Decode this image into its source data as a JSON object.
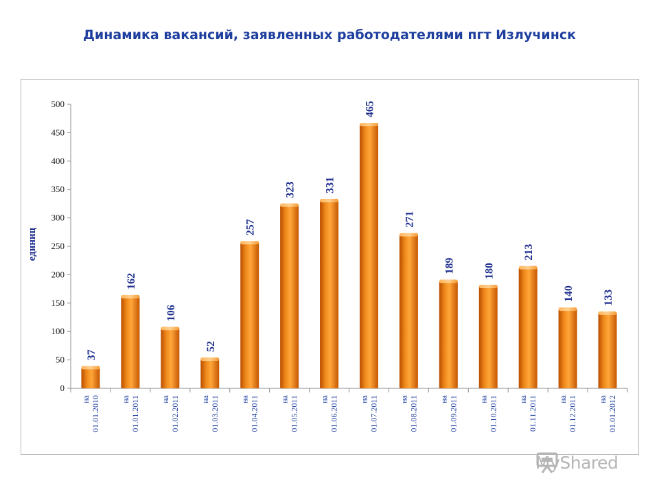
{
  "title": "Динамика вакансий, заявленных работодателями пгт Излучинск",
  "chart_data": {
    "type": "bar",
    "title": "Динамика вакансий, заявленных работодателями пгт Излучинск",
    "xlabel": "",
    "ylabel": "единиц",
    "ylim": [
      0,
      500
    ],
    "yticks": [
      "0",
      "50",
      "100",
      "150",
      "200",
      "250",
      "300",
      "350",
      "400",
      "450",
      "500"
    ],
    "grid": false,
    "legend": "none",
    "categories": [
      [
        "на",
        "01.01.2010"
      ],
      [
        "на",
        "01.01.2011"
      ],
      [
        "на",
        "01.02.2011"
      ],
      [
        "на",
        "01.03.2011"
      ],
      [
        "на",
        "01.04.2011"
      ],
      [
        "на",
        "01.05.2011"
      ],
      [
        "на",
        "01.06.2011"
      ],
      [
        "на",
        "01.07.2011"
      ],
      [
        "на",
        "01.08.2011"
      ],
      [
        "на",
        "01.09.2011"
      ],
      [
        "на",
        "01.10.2011"
      ],
      [
        "на",
        "01.11.2011"
      ],
      [
        "на",
        "01.12.2011"
      ],
      [
        "на",
        "01.01.2012"
      ]
    ],
    "values": [
      37,
      162,
      106,
      52,
      257,
      323,
      331,
      465,
      271,
      189,
      180,
      213,
      140,
      133
    ],
    "bar_color": "#e8730f"
  },
  "watermark": {
    "brand": "MyShared",
    "icon": "presentation-board-icon"
  }
}
